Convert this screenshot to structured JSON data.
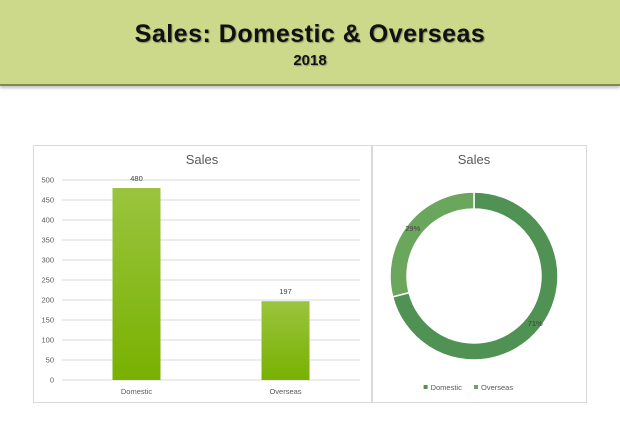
{
  "header": {
    "title": "Sales: Domestic & Overseas",
    "subtitle": "2018"
  },
  "chart_data": [
    {
      "type": "bar",
      "title": "Sales",
      "categories": [
        "Domestic",
        "Overseas"
      ],
      "values": [
        480,
        197
      ],
      "ylim": [
        0,
        500
      ],
      "yticks": [
        0,
        50,
        100,
        150,
        200,
        250,
        300,
        350,
        400,
        450,
        500
      ],
      "grid": true,
      "data_labels": [
        "480",
        "197"
      ],
      "colors": {
        "bar_top": "#9ac43f",
        "bar_bottom": "#78b100",
        "grid": "#d9d9d9"
      }
    },
    {
      "type": "pie",
      "variant": "donut",
      "title": "Sales",
      "categories": [
        "Domestic",
        "Overseas"
      ],
      "values": [
        71,
        29
      ],
      "data_labels": [
        "71%",
        "29%"
      ],
      "legend": "bottom",
      "colors": [
        "#4f9253",
        "#6aa75d"
      ]
    }
  ]
}
